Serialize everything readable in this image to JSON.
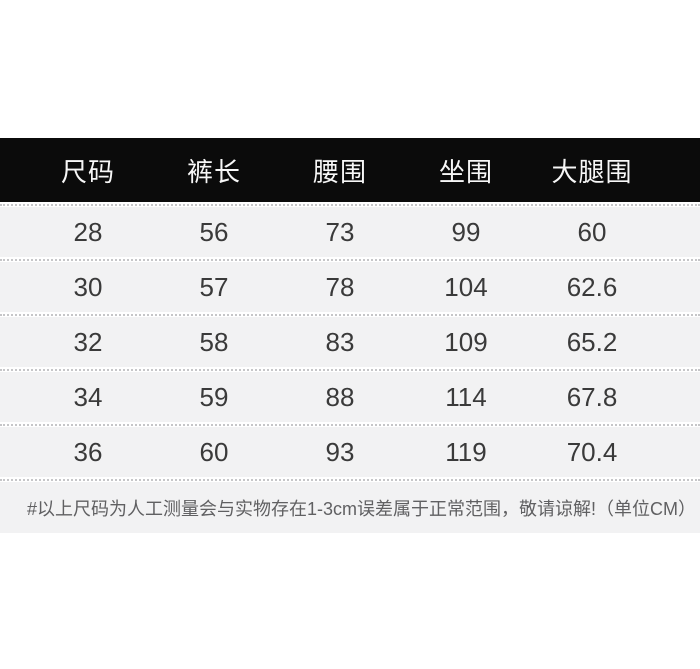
{
  "chart_data": {
    "type": "table",
    "columns": [
      "尺码",
      "裤长",
      "腰围",
      "坐围",
      "大腿围"
    ],
    "rows": [
      [
        "28",
        "56",
        "73",
        "99",
        "60"
      ],
      [
        "30",
        "57",
        "78",
        "104",
        "62.6"
      ],
      [
        "32",
        "58",
        "83",
        "109",
        "65.2"
      ],
      [
        "34",
        "59",
        "88",
        "114",
        "67.8"
      ],
      [
        "36",
        "60",
        "93",
        "119",
        "70.4"
      ]
    ],
    "unit": "CM"
  },
  "footnote": "#以上尺码为人工测量会与实物存在1-3cm误差属于正常范围，敬请谅解!（单位CM）",
  "colors": {
    "header_bg": "#0b0b0b",
    "header_text": "#f7f7f7",
    "row_bg": "#f2f2f3",
    "row_text": "#3a3a3a",
    "footnote_text": "#606062",
    "divider": "#c6c6c8",
    "page_bg": "#ffffff"
  }
}
